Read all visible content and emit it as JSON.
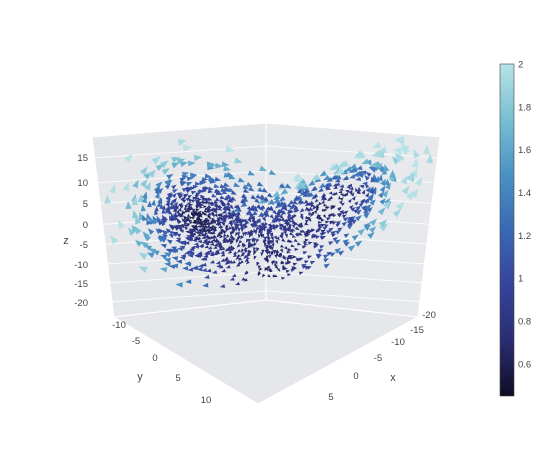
{
  "chart_data": {
    "type": "cone",
    "title": "",
    "scene": {
      "x": {
        "title": "x",
        "ticks": [
          "-20",
          "-15",
          "-10",
          "-5",
          "0",
          "5"
        ]
      },
      "y": {
        "title": "y",
        "ticks": [
          "-10",
          "-5",
          "0",
          "5",
          "10"
        ]
      },
      "z": {
        "title": "z",
        "ticks": [
          "15",
          "10",
          "5",
          "0",
          "-5",
          "-10",
          "-15",
          "-20"
        ]
      },
      "background": "#e5e7ea",
      "grid": true
    },
    "colorbar": {
      "min": 0.45,
      "max": 2.0,
      "ticks": [
        "2",
        "1.8",
        "1.6",
        "1.4",
        "1.2",
        "1",
        "0.8",
        "0.6"
      ],
      "tick_values": [
        2.0,
        1.8,
        1.6,
        1.4,
        1.2,
        1.0,
        0.8,
        0.6
      ],
      "colorscale": [
        "#0e0c24",
        "#2a2d72",
        "#36439c",
        "#3a68b3",
        "#4a92c4",
        "#78bfd2",
        "#b8e3e6"
      ]
    },
    "series": [
      {
        "description": "cone vectors along a Lorenz attractor trajectory",
        "color_by": "vector magnitude"
      }
    ]
  }
}
